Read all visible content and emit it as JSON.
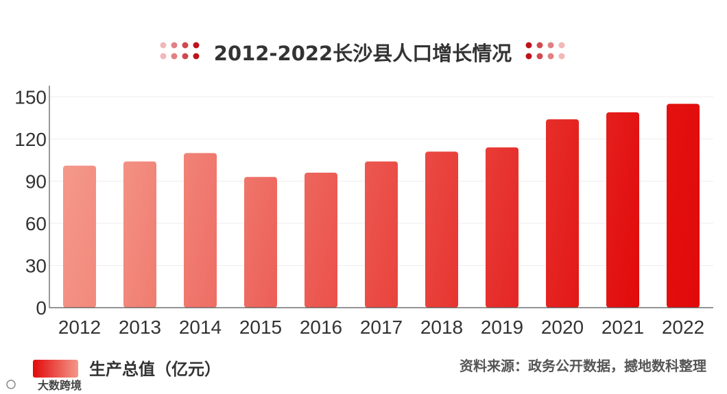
{
  "chart_data": {
    "type": "bar",
    "title": "2012-2022长沙县人口增长情况",
    "categories": [
      "2012",
      "2013",
      "2014",
      "2015",
      "2016",
      "2017",
      "2018",
      "2019",
      "2020",
      "2021",
      "2022"
    ],
    "series": [
      {
        "name": "生产总值（亿元）",
        "values": [
          101,
          104,
          110,
          93,
          96,
          104,
          111,
          114,
          134,
          139,
          145
        ]
      }
    ],
    "yticks": [
      0,
      30,
      60,
      90,
      120,
      150
    ],
    "ylim": [
      0,
      155
    ],
    "grid": true,
    "legend_position": "bottom-left"
  },
  "source": "资料来源：政务公开数据，撼地数科整理",
  "watermark": "大数跨境",
  "colors": {
    "bar_start": "#f4988a",
    "bar_end": "#e10a0a",
    "title_dot_dark": "#c0121b",
    "title_dot_light": "#f2b7b7",
    "axis": "#555555",
    "grid": "#eeeeee"
  }
}
